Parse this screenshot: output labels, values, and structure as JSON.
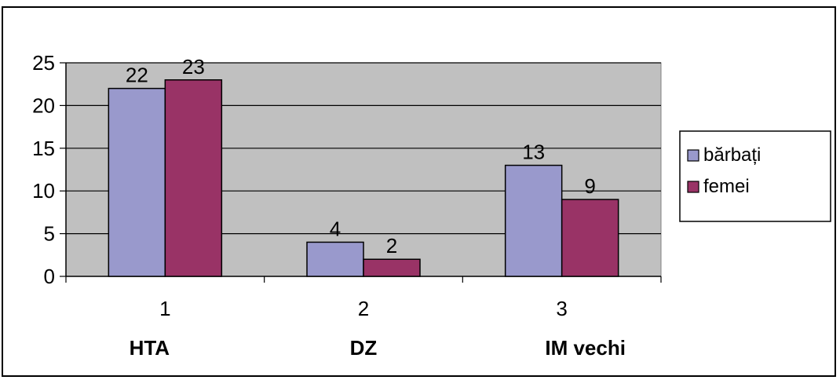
{
  "chart_data": {
    "type": "bar",
    "categories": [
      "1",
      "2",
      "3"
    ],
    "category_names": [
      "HTA",
      "DZ",
      "IM vechi"
    ],
    "series": [
      {
        "name": "bărbați",
        "values": [
          22,
          4,
          13
        ],
        "color": "#9999cc"
      },
      {
        "name": "femei",
        "values": [
          23,
          2,
          9
        ],
        "color": "#993366"
      }
    ],
    "ylim": [
      0,
      25
    ],
    "yticks": [
      0,
      5,
      10,
      15,
      20,
      25
    ],
    "grid": true,
    "plot_background": "#c0c0c0",
    "legend_position": "right",
    "title": "",
    "xlabel": "",
    "ylabel": ""
  }
}
